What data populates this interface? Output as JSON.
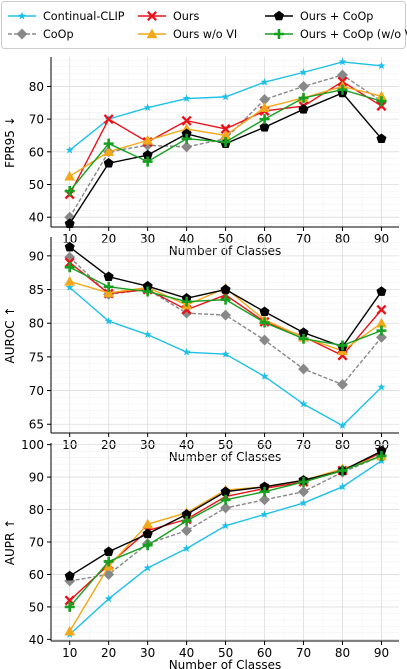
{
  "legend": {
    "entries": [
      {
        "label": "Continual-CLIP",
        "color": "#1ec0e8",
        "marker": "star"
      },
      {
        "label": "CoOp",
        "color": "#888888",
        "marker": "diamond"
      },
      {
        "label": "Ours",
        "color": "#e8141c",
        "marker": "x"
      },
      {
        "label": "Ours w/o VI",
        "color": "#f2a81a",
        "marker": "triangle"
      },
      {
        "label": "Ours + CoOp",
        "color": "#000000",
        "marker": "pentagon"
      },
      {
        "label": "Ours + CoOp (w/o VI)",
        "color": "#16a020",
        "marker": "plus"
      }
    ]
  },
  "chart_data": [
    {
      "type": "line",
      "ylabel": "FPR95 ↓",
      "xlabel": "Number of Classes",
      "x": [
        10,
        20,
        30,
        40,
        50,
        60,
        70,
        80,
        90
      ],
      "ylim": [
        37,
        89
      ],
      "yticks": [
        40,
        50,
        60,
        70,
        80
      ],
      "grid": true,
      "series": [
        {
          "name": "Continual-CLIP",
          "values": [
            60.5,
            70.0,
            73.5,
            76.3,
            76.8,
            81.3,
            84.3,
            87.5,
            86.3
          ]
        },
        {
          "name": "CoOp",
          "values": [
            40.0,
            60.0,
            62.0,
            61.5,
            64.0,
            76.0,
            80.0,
            83.5,
            75.5
          ]
        },
        {
          "name": "Ours",
          "values": [
            47.0,
            70.0,
            63.0,
            69.5,
            67.0,
            72.5,
            74.0,
            81.5,
            74.0
          ]
        },
        {
          "name": "Ours w/o VI",
          "values": [
            52.5,
            60.0,
            63.5,
            67.0,
            65.0,
            73.5,
            76.5,
            80.0,
            77.0
          ]
        },
        {
          "name": "Ours + CoOp",
          "values": [
            38.0,
            56.5,
            59.0,
            65.5,
            62.5,
            67.5,
            73.0,
            78.0,
            64.0
          ]
        },
        {
          "name": "Ours + CoOp (w/o VI)",
          "values": [
            48.0,
            62.5,
            57.0,
            64.0,
            63.0,
            70.0,
            76.5,
            79.0,
            75.5
          ]
        }
      ]
    },
    {
      "type": "line",
      "ylabel": "AUROC ↑",
      "xlabel": "Number of Classes",
      "x": [
        10,
        20,
        30,
        40,
        50,
        60,
        70,
        80,
        90
      ],
      "ylim": [
        63.7,
        92.8
      ],
      "yticks": [
        65,
        70,
        75,
        80,
        85,
        90
      ],
      "grid": true,
      "series": [
        {
          "name": "Continual-CLIP",
          "values": [
            85.3,
            80.3,
            78.3,
            75.7,
            75.4,
            72.1,
            68.0,
            64.8,
            70.5
          ]
        },
        {
          "name": "CoOp",
          "values": [
            89.8,
            84.3,
            85.0,
            81.5,
            81.2,
            77.5,
            73.2,
            70.9,
            77.9
          ]
        },
        {
          "name": "Ours",
          "values": [
            89.0,
            84.4,
            85.0,
            82.0,
            84.2,
            80.2,
            78.0,
            75.2,
            82.0
          ]
        },
        {
          "name": "Ours w/o VI",
          "values": [
            86.2,
            84.5,
            85.3,
            82.7,
            85.2,
            80.5,
            77.9,
            75.9,
            80.0
          ]
        },
        {
          "name": "Ours + CoOp",
          "values": [
            91.3,
            86.9,
            85.5,
            83.7,
            85.0,
            81.7,
            78.6,
            76.5,
            84.7
          ]
        },
        {
          "name": "Ours + CoOp (w/o VI)",
          "values": [
            88.3,
            85.4,
            84.7,
            83.2,
            83.5,
            80.1,
            77.7,
            76.7,
            78.9
          ]
        }
      ]
    },
    {
      "type": "line",
      "ylabel": "AUPR ↑",
      "xlabel": "Number of Classes",
      "x": [
        10,
        20,
        30,
        40,
        50,
        60,
        70,
        80,
        90
      ],
      "ylim": [
        39.5,
        100.5
      ],
      "yticks": [
        40,
        50,
        60,
        70,
        80,
        90,
        100
      ],
      "grid": true,
      "series": [
        {
          "name": "Continual-CLIP",
          "values": [
            41.5,
            52.5,
            62.0,
            68.0,
            75.0,
            78.5,
            82.0,
            87.0,
            95.0
          ]
        },
        {
          "name": "CoOp",
          "values": [
            58.0,
            60.0,
            69.5,
            73.5,
            80.5,
            83.0,
            85.5,
            91.5,
            96.5
          ]
        },
        {
          "name": "Ours",
          "values": [
            52.0,
            63.0,
            73.5,
            77.0,
            84.0,
            86.5,
            88.5,
            92.0,
            97.5
          ]
        },
        {
          "name": "Ours w/o VI",
          "values": [
            42.5,
            62.5,
            75.5,
            79.0,
            86.0,
            87.0,
            89.0,
            92.5,
            96.5
          ]
        },
        {
          "name": "Ours + CoOp",
          "values": [
            59.5,
            67.0,
            72.5,
            78.5,
            85.5,
            87.0,
            89.0,
            92.0,
            98.0
          ]
        },
        {
          "name": "Ours + CoOp (w/o VI)",
          "values": [
            50.0,
            64.0,
            69.0,
            76.5,
            83.0,
            85.5,
            88.5,
            92.0,
            96.5
          ]
        }
      ]
    }
  ]
}
